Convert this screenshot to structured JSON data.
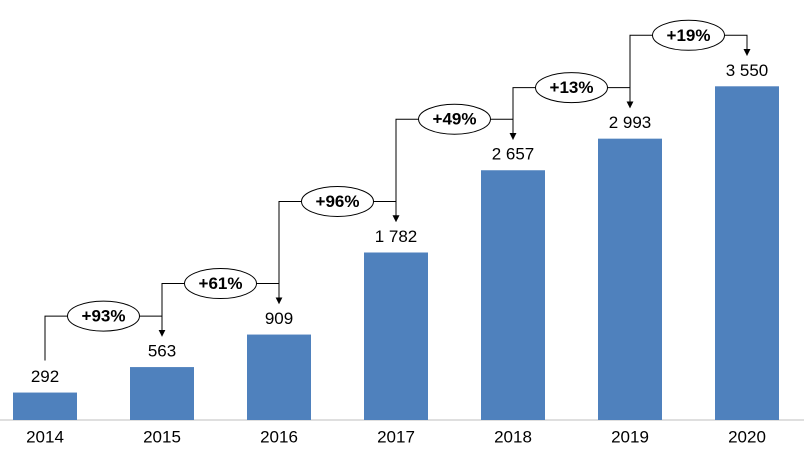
{
  "chart_data": {
    "type": "bar",
    "categories": [
      "2014",
      "2015",
      "2016",
      "2017",
      "2018",
      "2019",
      "2020"
    ],
    "values": [
      292,
      563,
      909,
      1782,
      2657,
      2993,
      3550
    ],
    "value_labels": [
      "292",
      "563",
      "909",
      "1 782",
      "2 657",
      "2 993",
      "3 550"
    ],
    "growth_labels": [
      "+93%",
      "+61%",
      "+96%",
      "+49%",
      "+13%",
      "+19%"
    ],
    "color": "#4f81bd",
    "ylim": [
      0,
      4000
    ]
  }
}
